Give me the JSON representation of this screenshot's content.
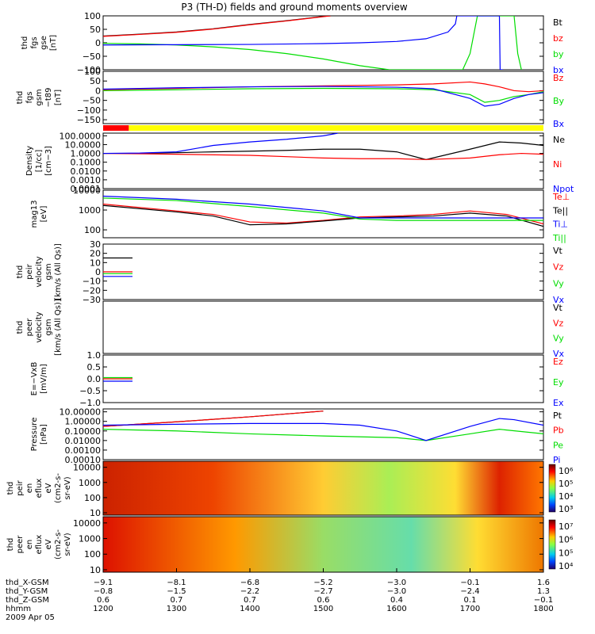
{
  "chart_data": {
    "type": "line",
    "title": "P3 (TH-D) fields and ground moments overview",
    "panels": [
      {
        "id": "fgs-gse",
        "ylabel": [
          "thd",
          "fgs",
          "gse",
          "[nT]"
        ],
        "yscale": "linear",
        "ylim": [
          -100,
          100
        ],
        "yticks": [
          "100",
          "50",
          "0",
          "−50",
          "−100"
        ],
        "series": [
          {
            "name": "Bt",
            "color": "#000000",
            "x": [
              1200,
              1250,
              1300,
              1350,
              1400,
              1450,
              1500,
              1510
            ],
            "y": [
              25,
              32,
              40,
              52,
              68,
              82,
              98,
              100
            ]
          },
          {
            "name": "bz",
            "color": "#ff0000",
            "x": [
              1200,
              1250,
              1300,
              1350,
              1400,
              1450,
              1500,
              1510
            ],
            "y": [
              24,
              31,
              39,
              51,
              67,
              81,
              97,
              100
            ]
          },
          {
            "name": "by",
            "color": "#00dd00",
            "x": [
              1200,
              1250,
              1300,
              1350,
              1400,
              1450,
              1500,
              1550,
              1590,
              1690,
              1700,
              1710,
              1760,
              1765,
              1770
            ],
            "y": [
              -2,
              -4,
              -8,
              -15,
              -25,
              -40,
              -60,
              -85,
              -100,
              -100,
              -40,
              100,
              100,
              -40,
              -100
            ]
          },
          {
            "name": "bx",
            "color": "#0000ff",
            "x": [
              1200,
              1300,
              1400,
              1500,
              1550,
              1600,
              1640,
              1670,
              1680,
              1682,
              1740,
              1741,
              1745
            ],
            "y": [
              -8,
              -7,
              -6,
              -3,
              0,
              5,
              15,
              40,
              70,
              100,
              100,
              -100,
              -100
            ]
          }
        ]
      },
      {
        "id": "fgs-gsm",
        "ylabel": [
          "thd",
          "fgs",
          "gsm",
          "−t89",
          "[nT]"
        ],
        "yscale": "linear",
        "ylim": [
          -170,
          100
        ],
        "yticks": [
          "100",
          "50",
          "0",
          "−50",
          "−100",
          "−150"
        ],
        "series": [
          {
            "name": "Bz",
            "color": "#ff0000",
            "x": [
              1200,
              1300,
              1400,
              1500,
              1600,
              1650,
              1700,
              1720,
              1740,
              1760,
              1780,
              1800
            ],
            "y": [
              5,
              12,
              20,
              25,
              30,
              35,
              45,
              35,
              20,
              0,
              -5,
              0
            ]
          },
          {
            "name": "By",
            "color": "#00dd00",
            "x": [
              1200,
              1300,
              1400,
              1500,
              1600,
              1650,
              1700,
              1720,
              1740,
              1760,
              1780,
              1800
            ],
            "y": [
              0,
              5,
              10,
              12,
              10,
              5,
              -20,
              -60,
              -50,
              -30,
              -20,
              -5
            ]
          },
          {
            "name": "Bx",
            "color": "#0000ff",
            "x": [
              1200,
              1300,
              1400,
              1500,
              1600,
              1650,
              1700,
              1720,
              1740,
              1760,
              1780,
              1800
            ],
            "y": [
              8,
              15,
              20,
              22,
              18,
              10,
              -40,
              -80,
              -70,
              -40,
              -20,
              -10
            ]
          }
        ]
      },
      {
        "id": "density",
        "ylabel": [
          "Density",
          "[1/cc]",
          "[cm−3]"
        ],
        "yscale": "log",
        "ylim": [
          0.0001,
          200
        ],
        "yticks": [
          "100.0000",
          "10.0000",
          "1.0000",
          "0.1000",
          "0.0100",
          "0.0010",
          "0.0001"
        ],
        "series": [
          {
            "name": "Ne",
            "color": "#000000",
            "x": [
              1200,
              1250,
              1300,
              1350,
              1400,
              1450,
              1500,
              1550,
              1600,
              1640,
              1700,
              1740,
              1770,
              1800
            ],
            "y": [
              1.0,
              1.0,
              1.2,
              1.5,
              1.8,
              2.2,
              3.0,
              3.0,
              1.5,
              0.2,
              3.0,
              20.0,
              15.0,
              8.0
            ]
          },
          {
            "name": "Ni",
            "color": "#ff0000",
            "x": [
              1200,
              1250,
              1300,
              1400,
              1500,
              1550,
              1600,
              1640,
              1700,
              1740,
              1770,
              1800
            ],
            "y": [
              1.0,
              0.9,
              0.8,
              0.6,
              0.3,
              0.25,
              0.25,
              0.2,
              0.3,
              0.7,
              1.0,
              0.8
            ]
          },
          {
            "name": "Npot",
            "color": "#0000ff",
            "x": [
              1200,
              1250,
              1300,
              1350,
              1400,
              1450,
              1500,
              1520
            ],
            "y": [
              1.0,
              1.1,
              1.5,
              8.0,
              20.0,
              40.0,
              100.0,
              200.0
            ]
          }
        ]
      },
      {
        "id": "temperature",
        "ylabel": [
          "mag13",
          "[eV]"
        ],
        "yscale": "log",
        "ylim": [
          40,
          10000
        ],
        "yticks": [
          "10000",
          "1000",
          "100"
        ],
        "series": [
          {
            "name": "Te⊥",
            "color": "#ff0000",
            "x": [
              1200,
              1300,
              1350,
              1400,
              1450,
              1500,
              1550,
              1600,
              1650,
              1700,
              1750,
              1800
            ],
            "y": [
              2000,
              900,
              600,
              250,
              220,
              300,
              450,
              500,
              600,
              900,
              600,
              200
            ]
          },
          {
            "name": "Te||",
            "color": "#000000",
            "x": [
              1200,
              1300,
              1350,
              1400,
              1450,
              1500,
              1550,
              1600,
              1650,
              1700,
              1750,
              1800
            ],
            "y": [
              1700,
              800,
              500,
              180,
              200,
              280,
              400,
              450,
              500,
              700,
              500,
              150
            ]
          },
          {
            "name": "Ti⊥",
            "color": "#0000ff",
            "x": [
              1200,
              1300,
              1400,
              1500,
              1550,
              1600,
              1700,
              1800
            ],
            "y": [
              5000,
              3500,
              2000,
              900,
              400,
              400,
              400,
              400
            ]
          },
          {
            "name": "Ti||",
            "color": "#00dd00",
            "x": [
              1200,
              1300,
              1400,
              1500,
              1550,
              1600,
              1700,
              1800
            ],
            "y": [
              4000,
              3000,
              1500,
              700,
              350,
              300,
              300,
              300
            ]
          }
        ]
      },
      {
        "id": "peir-velocity",
        "ylabel": [
          "thd",
          "peir",
          "velocity",
          "gsm",
          "[km/s (All Qs)]"
        ],
        "yscale": "linear",
        "ylim": [
          -30,
          30
        ],
        "yticks": [
          "30",
          "20",
          "10",
          "0",
          "−10",
          "−20",
          "−30"
        ],
        "series": [
          {
            "name": "Vt",
            "color": "#000000",
            "x": [
              1200,
              1210,
              1220,
              1230,
              1240
            ],
            "y": [
              15,
              15,
              15,
              15,
              15
            ]
          },
          {
            "name": "Vz",
            "color": "#ff0000",
            "x": [
              1200,
              1210,
              1220,
              1230,
              1240
            ],
            "y": [
              0,
              0,
              0,
              0,
              0
            ]
          },
          {
            "name": "Vy",
            "color": "#00dd00",
            "x": [
              1200,
              1210,
              1220,
              1230,
              1240
            ],
            "y": [
              -2,
              -2,
              -2,
              -2,
              -2
            ]
          },
          {
            "name": "Vx",
            "color": "#0000ff",
            "x": [
              1200,
              1210,
              1220,
              1230,
              1240
            ],
            "y": [
              -5,
              -5,
              -5,
              -5,
              -5
            ]
          }
        ]
      },
      {
        "id": "peer-velocity",
        "ylabel": [
          "thd",
          "peer",
          "velocity",
          "gsm",
          "[km/s (All Qs)]"
        ],
        "yscale": "linear",
        "ylim": [
          -30,
          30
        ],
        "yticks": [],
        "series": [
          {
            "name": "Vt",
            "color": "#000000",
            "x": [],
            "y": []
          },
          {
            "name": "Vz",
            "color": "#ff0000",
            "x": [],
            "y": []
          },
          {
            "name": "Vy",
            "color": "#00dd00",
            "x": [],
            "y": []
          },
          {
            "name": "Vx",
            "color": "#0000ff",
            "x": [],
            "y": []
          }
        ]
      },
      {
        "id": "efield",
        "ylabel": [
          "E=−VxB",
          "[mV/m]"
        ],
        "yscale": "linear",
        "ylim": [
          -1,
          1
        ],
        "yticks": [
          "1.0",
          "0.5",
          "0.0",
          "−0.5",
          "−1.0"
        ],
        "series": [
          {
            "name": "Ez",
            "color": "#ff0000",
            "x": [
              1200,
              1210,
              1220,
              1230,
              1240
            ],
            "y": [
              0,
              0,
              0,
              0,
              0
            ]
          },
          {
            "name": "Ey",
            "color": "#00dd00",
            "x": [
              1200,
              1210,
              1220,
              1230,
              1240
            ],
            "y": [
              0.05,
              0.05,
              0.05,
              0.05,
              0.05
            ]
          },
          {
            "name": "Ex",
            "color": "#0000ff",
            "x": [
              1200,
              1210,
              1220,
              1230,
              1240
            ],
            "y": [
              -0.1,
              -0.1,
              -0.1,
              -0.1,
              -0.1
            ]
          }
        ]
      },
      {
        "id": "pressure",
        "ylabel": [
          "Pressure",
          "[nPa]"
        ],
        "yscale": "log",
        "ylim": [
          0.0001,
          20
        ],
        "yticks": [
          "10.00000",
          "1.00000",
          "0.10000",
          "0.01000",
          "0.00100",
          "0.00010"
        ],
        "series": [
          {
            "name": "Pt",
            "color": "#000000",
            "x": [
              1200,
              1300,
              1400,
              1500
            ],
            "y": [
              0.3,
              0.9,
              3.0,
              12.0
            ]
          },
          {
            "name": "Pb",
            "color": "#ff0000",
            "x": [
              1200,
              1300,
              1400,
              1500
            ],
            "y": [
              0.3,
              0.9,
              3.0,
              12.0
            ]
          },
          {
            "name": "Pe",
            "color": "#00dd00",
            "x": [
              1200,
              1300,
              1400,
              1500,
              1600,
              1640,
              1700,
              1740,
              1800
            ],
            "y": [
              0.15,
              0.1,
              0.05,
              0.03,
              0.02,
              0.01,
              0.05,
              0.15,
              0.05
            ]
          },
          {
            "name": "Pi",
            "color": "#0000ff",
            "x": [
              1200,
              1300,
              1400,
              1500,
              1550,
              1600,
              1640,
              1700,
              1740,
              1760,
              1800
            ],
            "y": [
              0.4,
              0.5,
              0.6,
              0.6,
              0.4,
              0.1,
              0.01,
              0.3,
              2.0,
              1.5,
              0.4
            ]
          }
        ]
      },
      {
        "id": "peir-eflux",
        "type": "heatmap",
        "ylabel": [
          "thd",
          "peir",
          "en",
          "eflux",
          "eV",
          "(cm2-s-",
          "sr-eV)"
        ],
        "yscale": "log",
        "ylim": [
          7,
          25000
        ],
        "yticks": [
          "10000",
          "1000",
          "100",
          "10"
        ],
        "colorbar": {
          "ticks": [
            "10⁶",
            "10⁵",
            "10⁴",
            "10³"
          ]
        }
      },
      {
        "id": "peer-eflux",
        "type": "heatmap",
        "ylabel": [
          "thd",
          "peer",
          "en",
          "eflux",
          "eV",
          "(cm2-s-",
          "sr-eV)"
        ],
        "yscale": "log",
        "ylim": [
          7,
          25000
        ],
        "yticks": [
          "10000",
          "1000",
          "100",
          "10"
        ],
        "colorbar": {
          "ticks": [
            "10⁷",
            "10⁶",
            "10⁵",
            "10⁴"
          ]
        }
      }
    ],
    "xaxis": {
      "range": [
        1200,
        1800
      ],
      "ticks": [
        1200,
        1300,
        1400,
        1500,
        1600,
        1700,
        1800
      ],
      "rows": [
        {
          "label": "thd_X-GSM",
          "values": [
            "−9.1",
            "−8.1",
            "−6.8",
            "−5.2",
            "−3.0",
            "−0.1",
            "1.6"
          ]
        },
        {
          "label": "thd_Y-GSM",
          "values": [
            "−0.8",
            "−1.5",
            "−2.2",
            "−2.7",
            "−3.0",
            "−2.4",
            "1.3"
          ]
        },
        {
          "label": "thd_Z-GSM",
          "values": [
            "0.6",
            "0.7",
            "0.7",
            "0.6",
            "0.4",
            "0.1",
            "−0.1"
          ]
        },
        {
          "label": "hhmm",
          "values": [
            "1200",
            "1300",
            "1400",
            "1500",
            "1600",
            "1700",
            "1800"
          ]
        }
      ],
      "date": "2009 Apr 05"
    },
    "mode_bar": [
      {
        "x": [
          1200,
          1235
        ],
        "color": "#ff0000"
      },
      {
        "x": [
          1235,
          1800
        ],
        "color": "#ffff00"
      }
    ]
  }
}
